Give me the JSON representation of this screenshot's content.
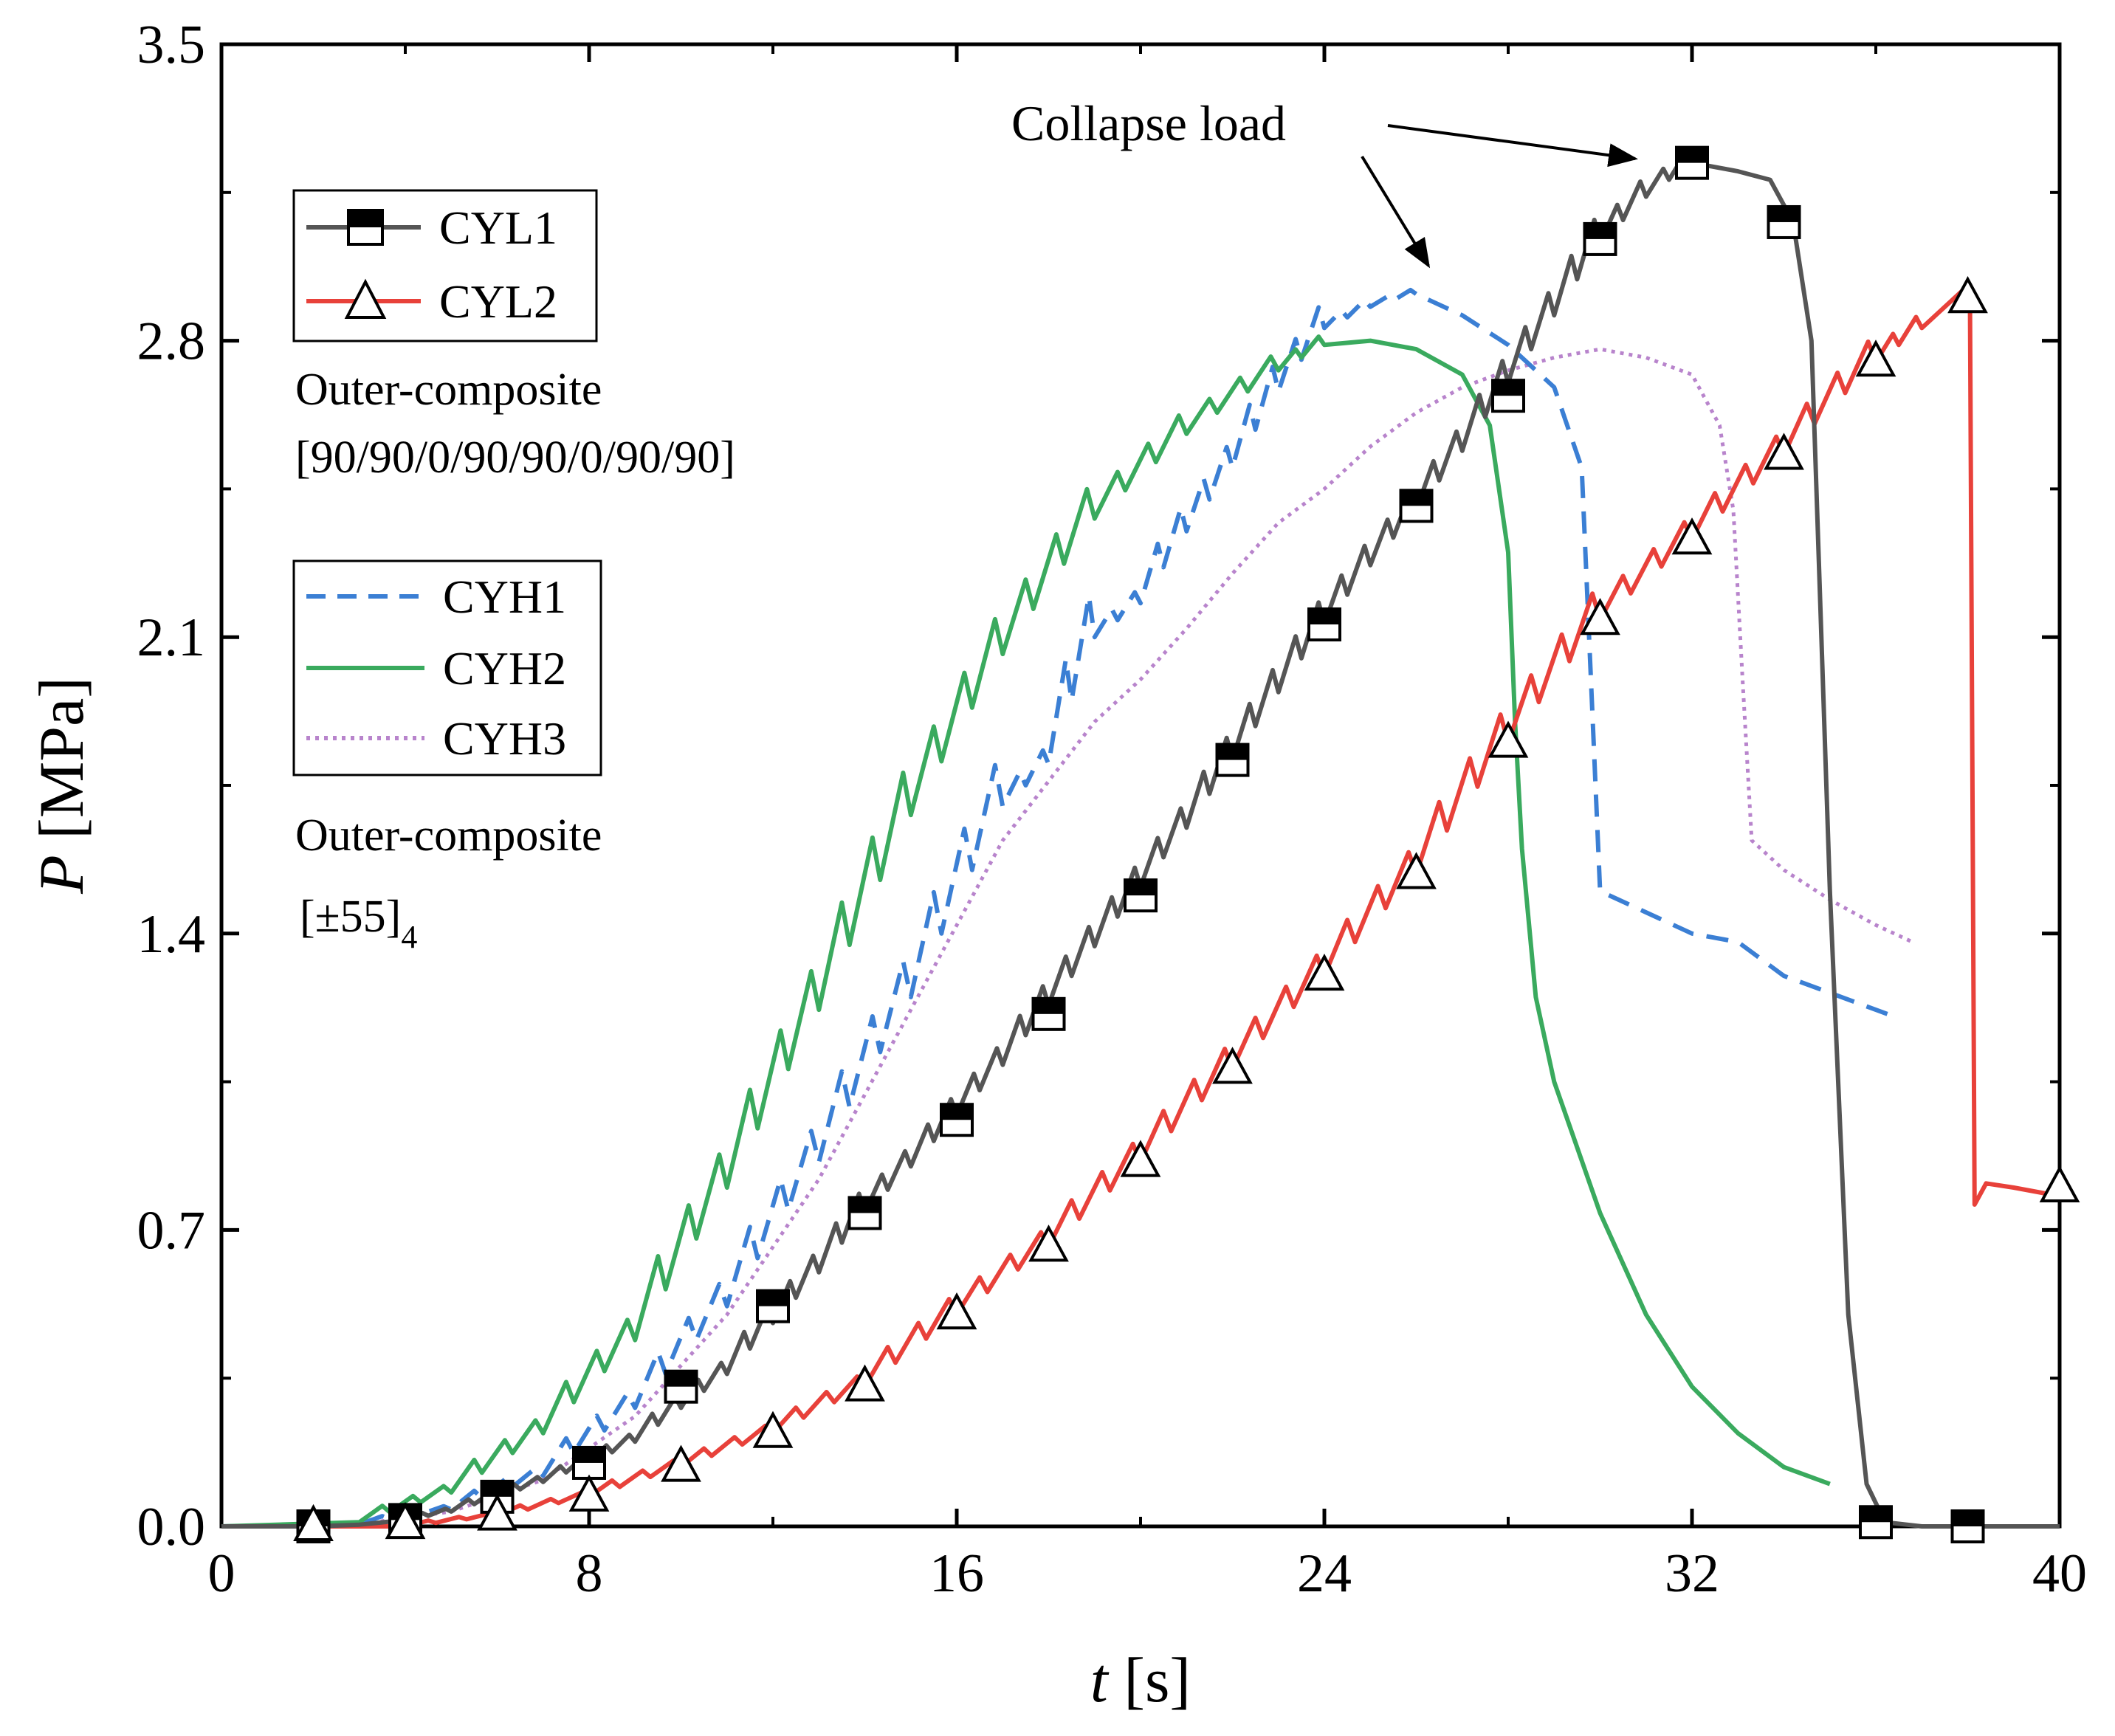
{
  "chart_data": {
    "type": "line",
    "title": "",
    "xlabel": "t [s]",
    "ylabel": "P [MPa]",
    "xlabel_parts": {
      "var": "t",
      "unit": " [s]"
    },
    "ylabel_parts": {
      "var": "P",
      "unit": " [MPa]"
    },
    "xlim": [
      0,
      40
    ],
    "ylim": [
      0,
      3.5
    ],
    "xticks": [
      0,
      8,
      16,
      24,
      32,
      40
    ],
    "yticks": [
      0.0,
      0.7,
      1.4,
      2.1,
      2.8,
      3.5
    ],
    "ytick_labels": [
      "0.0",
      "0.7",
      "1.4",
      "2.1",
      "2.8",
      "3.5"
    ],
    "grid": false,
    "annotation": {
      "text": "Collapse load"
    },
    "legend_groups": [
      {
        "entries": [
          "CYL1",
          "CYL2"
        ],
        "note": [
          "Outer-composite",
          "[90/90/0/90/90/0/90/90]"
        ]
      },
      {
        "entries": [
          "CYH1",
          "CYH2",
          "CYH3"
        ],
        "note": [
          "Outer-composite",
          "[±55]",
          "4"
        ]
      }
    ],
    "series": [
      {
        "name": "CYL1",
        "color": "#555555",
        "style": "solid",
        "marker": "half-filled-square",
        "points": [
          [
            0,
            0
          ],
          [
            2,
            0
          ],
          [
            3,
            0.004
          ],
          [
            4,
            0.015
          ],
          [
            5,
            0.035
          ],
          [
            6,
            0.07
          ],
          [
            7,
            0.105
          ],
          [
            8,
            0.15
          ],
          [
            9,
            0.2
          ],
          [
            10,
            0.28
          ],
          [
            11,
            0.36
          ],
          [
            12,
            0.48
          ],
          [
            13,
            0.6
          ],
          [
            14,
            0.74
          ],
          [
            15,
            0.85
          ],
          [
            16,
            0.97
          ],
          [
            17,
            1.09
          ],
          [
            18,
            1.23
          ],
          [
            19,
            1.37
          ],
          [
            20,
            1.51
          ],
          [
            21,
            1.65
          ],
          [
            22,
            1.81
          ],
          [
            23,
            1.97
          ],
          [
            24,
            2.13
          ],
          [
            25,
            2.27
          ],
          [
            26,
            2.4
          ],
          [
            27,
            2.54
          ],
          [
            28,
            2.7
          ],
          [
            29,
            2.86
          ],
          [
            30,
            3.03
          ],
          [
            31,
            3.14
          ],
          [
            32,
            3.22
          ],
          [
            33,
            3.2
          ],
          [
            33.7,
            3.18
          ],
          [
            34.2,
            3.08
          ],
          [
            34.6,
            2.8
          ],
          [
            35,
            1.5
          ],
          [
            35.4,
            0.5
          ],
          [
            35.8,
            0.1
          ],
          [
            36.2,
            0.01
          ],
          [
            37,
            0
          ],
          [
            40,
            0
          ]
        ],
        "markers_x": [
          2,
          4,
          6,
          8,
          10,
          12,
          14,
          16,
          18,
          20,
          22,
          24,
          26,
          28,
          30,
          32,
          34,
          36,
          38
        ],
        "markers_y": [
          0,
          0.015,
          0.07,
          0.15,
          0.33,
          0.52,
          0.74,
          0.96,
          1.21,
          1.49,
          1.81,
          2.13,
          2.41,
          2.67,
          3.04,
          3.22,
          3.08,
          0.01,
          0
        ]
      },
      {
        "name": "CYL2",
        "color": "#e8413a",
        "style": "solid",
        "marker": "open-triangle",
        "points": [
          [
            0,
            0
          ],
          [
            4,
            0
          ],
          [
            6,
            0.025
          ],
          [
            8,
            0.07
          ],
          [
            10,
            0.14
          ],
          [
            12,
            0.22
          ],
          [
            14,
            0.33
          ],
          [
            16,
            0.5
          ],
          [
            18,
            0.66
          ],
          [
            20,
            0.86
          ],
          [
            22,
            1.08
          ],
          [
            24,
            1.3
          ],
          [
            26,
            1.54
          ],
          [
            28,
            1.85
          ],
          [
            30,
            2.14
          ],
          [
            32,
            2.33
          ],
          [
            34,
            2.53
          ],
          [
            36,
            2.75
          ],
          [
            37,
            2.83
          ],
          [
            37.9,
            2.92
          ],
          [
            38.05,
            2.88
          ],
          [
            38.15,
            0.76
          ],
          [
            38.4,
            0.81
          ],
          [
            39,
            0.8
          ],
          [
            40,
            0.78
          ]
        ],
        "markers_x": [
          2,
          4,
          6,
          8,
          10,
          12,
          14,
          16,
          18,
          20,
          22,
          24,
          26,
          28,
          30,
          32,
          34,
          36,
          38,
          40
        ],
        "markers_y": [
          0,
          0.005,
          0.025,
          0.07,
          0.14,
          0.22,
          0.33,
          0.5,
          0.66,
          0.86,
          1.08,
          1.3,
          1.54,
          1.85,
          2.14,
          2.33,
          2.53,
          2.75,
          2.9,
          0.8
        ]
      },
      {
        "name": "CYH1",
        "color": "#3b7fd4",
        "style": "dashed",
        "marker": "none",
        "points": [
          [
            0,
            0
          ],
          [
            3,
            0.005
          ],
          [
            5,
            0.04
          ],
          [
            7,
            0.12
          ],
          [
            9,
            0.28
          ],
          [
            11,
            0.52
          ],
          [
            13,
            0.86
          ],
          [
            15,
            1.25
          ],
          [
            17,
            1.7
          ],
          [
            18,
            1.8
          ],
          [
            19,
            2.1
          ],
          [
            20,
            2.18
          ],
          [
            21,
            2.35
          ],
          [
            22,
            2.5
          ],
          [
            23,
            2.68
          ],
          [
            24,
            2.83
          ],
          [
            25,
            2.88
          ],
          [
            26,
            2.91
          ],
          [
            27,
            2.86
          ],
          [
            28,
            2.79
          ],
          [
            29,
            2.69
          ],
          [
            29.6,
            2.5
          ],
          [
            29.8,
            2.0
          ],
          [
            30,
            1.5
          ],
          [
            31,
            1.45
          ],
          [
            32,
            1.4
          ],
          [
            33,
            1.38
          ],
          [
            34,
            1.3
          ],
          [
            35,
            1.26
          ],
          [
            36.5,
            1.2
          ]
        ]
      },
      {
        "name": "CYH2",
        "color": "#3aaa5e",
        "style": "solid",
        "marker": "none",
        "points": [
          [
            0,
            0
          ],
          [
            3,
            0.01
          ],
          [
            5,
            0.08
          ],
          [
            7,
            0.22
          ],
          [
            9,
            0.44
          ],
          [
            11,
            0.8
          ],
          [
            13,
            1.22
          ],
          [
            15,
            1.68
          ],
          [
            17,
            2.06
          ],
          [
            19,
            2.38
          ],
          [
            21,
            2.58
          ],
          [
            23,
            2.73
          ],
          [
            24,
            2.79
          ],
          [
            25,
            2.8
          ],
          [
            26,
            2.78
          ],
          [
            27,
            2.72
          ],
          [
            27.6,
            2.6
          ],
          [
            28,
            2.3
          ],
          [
            28.15,
            1.9
          ],
          [
            28.3,
            1.6
          ],
          [
            28.6,
            1.25
          ],
          [
            29,
            1.05
          ],
          [
            30,
            0.74
          ],
          [
            31,
            0.5
          ],
          [
            32,
            0.33
          ],
          [
            33,
            0.22
          ],
          [
            34,
            0.14
          ],
          [
            35,
            0.1
          ]
        ]
      },
      {
        "name": "CYH3",
        "color": "#b884cc",
        "style": "dotted",
        "marker": "none",
        "points": [
          [
            0,
            0
          ],
          [
            3,
            0.005
          ],
          [
            5,
            0.035
          ],
          [
            7,
            0.11
          ],
          [
            9,
            0.26
          ],
          [
            11,
            0.5
          ],
          [
            13,
            0.82
          ],
          [
            15,
            1.22
          ],
          [
            17,
            1.62
          ],
          [
            19,
            1.9
          ],
          [
            20,
            2.0
          ],
          [
            21,
            2.12
          ],
          [
            22,
            2.25
          ],
          [
            23,
            2.37
          ],
          [
            24,
            2.45
          ],
          [
            25,
            2.55
          ],
          [
            26,
            2.63
          ],
          [
            27,
            2.69
          ],
          [
            28,
            2.73
          ],
          [
            29,
            2.76
          ],
          [
            30,
            2.78
          ],
          [
            31,
            2.76
          ],
          [
            32,
            2.72
          ],
          [
            32.6,
            2.6
          ],
          [
            32.9,
            2.4
          ],
          [
            33.1,
            2.0
          ],
          [
            33.3,
            1.62
          ],
          [
            34,
            1.55
          ],
          [
            35,
            1.48
          ],
          [
            36,
            1.42
          ],
          [
            36.8,
            1.38
          ]
        ]
      }
    ]
  }
}
